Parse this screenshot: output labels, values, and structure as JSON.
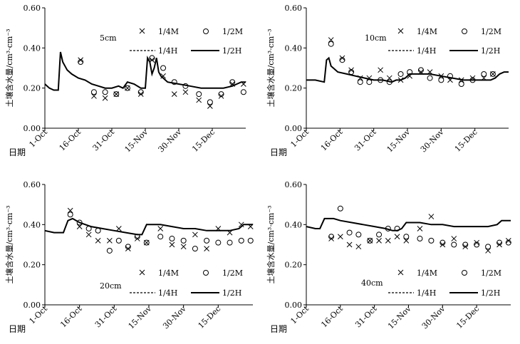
{
  "chart_data": [
    {
      "type": "line",
      "panel_label": "5cm",
      "xlabel": "日期",
      "ylabel": "土壤含水量/cm³·cm⁻³",
      "x_ticks": [
        "1-Oct",
        "16-Oct",
        "31-Oct",
        "15-Nov",
        "30-Nov",
        "15-Dec"
      ],
      "y_ticks": [
        "0.00",
        "0.20",
        "0.40",
        "0.60"
      ],
      "xlim": [
        0,
        90
      ],
      "ylim": [
        0,
        0.6
      ],
      "legend": [
        "1/4M",
        "1/2M",
        "1/4H",
        "1/2H"
      ],
      "series": [
        {
          "name": "1/4M",
          "style": "cross",
          "x": [
            16,
            22,
            27,
            32,
            37,
            43,
            48,
            53,
            58,
            63,
            69,
            74,
            79,
            84,
            89
          ],
          "y": [
            0.34,
            0.16,
            0.15,
            0.17,
            0.2,
            0.17,
            0.34,
            0.26,
            0.17,
            0.18,
            0.14,
            0.11,
            0.16,
            0.22,
            0.22
          ]
        },
        {
          "name": "1/2M",
          "style": "circle",
          "x": [
            16,
            22,
            27,
            32,
            37,
            43,
            48,
            53,
            58,
            63,
            69,
            74,
            79,
            84,
            89
          ],
          "y": [
            0.33,
            0.18,
            0.18,
            0.17,
            0.2,
            0.18,
            0.35,
            0.3,
            0.23,
            0.21,
            0.17,
            0.13,
            0.17,
            0.23,
            0.18
          ]
        },
        {
          "name": "1/4H",
          "style": "dashed",
          "x": [
            0,
            2,
            4,
            6,
            7,
            8,
            10,
            12,
            15,
            18,
            21,
            24,
            27,
            30,
            33,
            35,
            37,
            40,
            43,
            45,
            46,
            47,
            48,
            49,
            50,
            51,
            52,
            55,
            60,
            65,
            70,
            75,
            80,
            84,
            86,
            88,
            90
          ],
          "y": [
            0.22,
            0.2,
            0.19,
            0.19,
            0.38,
            0.33,
            0.29,
            0.27,
            0.25,
            0.24,
            0.22,
            0.21,
            0.2,
            0.2,
            0.21,
            0.2,
            0.23,
            0.22,
            0.2,
            0.2,
            0.35,
            0.33,
            0.27,
            0.3,
            0.35,
            0.28,
            0.26,
            0.23,
            0.22,
            0.21,
            0.2,
            0.2,
            0.2,
            0.21,
            0.22,
            0.23,
            0.23
          ]
        },
        {
          "name": "1/2H",
          "style": "solid",
          "x": [
            0,
            2,
            4,
            6,
            7,
            8,
            10,
            12,
            15,
            18,
            21,
            24,
            27,
            30,
            33,
            35,
            37,
            40,
            43,
            45,
            46,
            47,
            48,
            49,
            50,
            51,
            52,
            55,
            60,
            65,
            70,
            75,
            80,
            84,
            86,
            88,
            90
          ],
          "y": [
            0.22,
            0.2,
            0.19,
            0.19,
            0.38,
            0.33,
            0.29,
            0.27,
            0.25,
            0.24,
            0.22,
            0.21,
            0.2,
            0.2,
            0.21,
            0.2,
            0.23,
            0.22,
            0.2,
            0.2,
            0.35,
            0.33,
            0.27,
            0.3,
            0.35,
            0.28,
            0.26,
            0.23,
            0.22,
            0.21,
            0.2,
            0.2,
            0.2,
            0.21,
            0.22,
            0.23,
            0.23
          ]
        }
      ]
    },
    {
      "type": "line",
      "panel_label": "10cm",
      "xlabel": "日期",
      "ylabel": "土壤含水量/cm³·cm⁻³",
      "x_ticks": [
        "1-Oct",
        "16-Oct",
        "31-Oct",
        "15-Nov",
        "30-Nov",
        "15-Dec"
      ],
      "y_ticks": [
        "0.00",
        "0.20",
        "0.40",
        "0.60"
      ],
      "xlim": [
        0,
        90
      ],
      "ylim": [
        0,
        0.6
      ],
      "legend": [
        "1/4M",
        "1/2M",
        "1/4H",
        "1/2H"
      ],
      "series": [
        {
          "name": "1/4M",
          "style": "cross",
          "x": [
            11,
            16,
            20,
            24,
            28,
            33,
            37,
            42,
            46,
            51,
            55,
            60,
            64,
            69,
            74,
            79,
            83
          ],
          "y": [
            0.44,
            0.35,
            0.29,
            0.25,
            0.25,
            0.29,
            0.25,
            0.24,
            0.26,
            0.28,
            0.28,
            0.26,
            0.24,
            0.24,
            0.25,
            0.25,
            0.27
          ]
        },
        {
          "name": "1/2M",
          "style": "circle",
          "x": [
            11,
            16,
            20,
            24,
            28,
            33,
            37,
            42,
            46,
            51,
            55,
            60,
            64,
            69,
            74,
            79,
            83
          ],
          "y": [
            0.42,
            0.34,
            0.28,
            0.23,
            0.23,
            0.24,
            0.23,
            0.27,
            0.28,
            0.29,
            0.25,
            0.24,
            0.26,
            0.22,
            0.24,
            0.27,
            0.27
          ]
        },
        {
          "name": "1/4H",
          "style": "dashed",
          "x": [
            0,
            4,
            8,
            9,
            10,
            11,
            12,
            14,
            18,
            22,
            26,
            30,
            34,
            38,
            40,
            42,
            44,
            46,
            50,
            55,
            60,
            65,
            70,
            75,
            80,
            82,
            84,
            86,
            88,
            90
          ],
          "y": [
            0.24,
            0.24,
            0.23,
            0.34,
            0.35,
            0.31,
            0.3,
            0.28,
            0.27,
            0.26,
            0.25,
            0.24,
            0.24,
            0.23,
            0.24,
            0.24,
            0.25,
            0.27,
            0.27,
            0.27,
            0.26,
            0.25,
            0.24,
            0.24,
            0.24,
            0.24,
            0.25,
            0.27,
            0.28,
            0.28
          ]
        },
        {
          "name": "1/2H",
          "style": "solid",
          "x": [
            0,
            4,
            8,
            9,
            10,
            11,
            12,
            14,
            18,
            22,
            26,
            30,
            34,
            38,
            40,
            42,
            44,
            46,
            50,
            55,
            60,
            65,
            70,
            75,
            80,
            82,
            84,
            86,
            88,
            90
          ],
          "y": [
            0.24,
            0.24,
            0.23,
            0.34,
            0.35,
            0.31,
            0.3,
            0.28,
            0.27,
            0.26,
            0.25,
            0.24,
            0.24,
            0.23,
            0.24,
            0.24,
            0.25,
            0.27,
            0.27,
            0.27,
            0.26,
            0.25,
            0.24,
            0.24,
            0.24,
            0.24,
            0.25,
            0.27,
            0.28,
            0.28
          ]
        }
      ]
    },
    {
      "type": "line",
      "panel_label": "20cm",
      "xlabel": "日期",
      "ylabel": "土壤含水量/cm³·cm⁻³",
      "x_ticks": [
        "1-Oct",
        "16-Oct",
        "31-Oct",
        "15-Nov",
        "30-Nov",
        "15-Dec"
      ],
      "y_ticks": [
        "0.00",
        "0.20",
        "0.40",
        "0.60"
      ],
      "xlim": [
        0,
        90
      ],
      "ylim": [
        0,
        0.6
      ],
      "legend": [
        "1/4M",
        "1/2M",
        "1/4H",
        "1/2H"
      ],
      "series": [
        {
          "name": "1/4M",
          "style": "cross",
          "x": [
            11,
            15,
            19,
            23,
            28,
            32,
            36,
            40,
            44,
            50,
            55,
            60,
            65,
            70,
            75,
            80,
            85,
            89
          ],
          "y": [
            0.47,
            0.39,
            0.35,
            0.32,
            0.32,
            0.38,
            0.28,
            0.33,
            0.31,
            0.38,
            0.3,
            0.29,
            0.35,
            0.28,
            0.38,
            0.36,
            0.4,
            0.39
          ]
        },
        {
          "name": "1/2M",
          "style": "circle",
          "x": [
            11,
            15,
            19,
            23,
            28,
            32,
            36,
            40,
            44,
            50,
            55,
            60,
            65,
            70,
            75,
            80,
            85,
            89
          ],
          "y": [
            0.45,
            0.41,
            0.38,
            0.37,
            0.27,
            0.32,
            0.29,
            0.34,
            0.31,
            0.34,
            0.33,
            0.32,
            0.28,
            0.32,
            0.31,
            0.31,
            0.32,
            0.32
          ]
        },
        {
          "name": "1/4H",
          "style": "dashed",
          "x": [
            0,
            4,
            8,
            10,
            12,
            15,
            20,
            25,
            30,
            35,
            40,
            42,
            44,
            50,
            55,
            60,
            65,
            70,
            75,
            80,
            84,
            86,
            88,
            90
          ],
          "y": [
            0.37,
            0.36,
            0.36,
            0.42,
            0.43,
            0.41,
            0.39,
            0.38,
            0.37,
            0.36,
            0.35,
            0.35,
            0.4,
            0.4,
            0.39,
            0.38,
            0.38,
            0.37,
            0.37,
            0.37,
            0.38,
            0.4,
            0.4,
            0.4
          ]
        },
        {
          "name": "1/2H",
          "style": "solid",
          "x": [
            0,
            4,
            8,
            10,
            12,
            15,
            20,
            25,
            30,
            35,
            40,
            42,
            44,
            50,
            55,
            60,
            65,
            70,
            75,
            80,
            84,
            86,
            88,
            90
          ],
          "y": [
            0.37,
            0.36,
            0.36,
            0.42,
            0.43,
            0.41,
            0.39,
            0.38,
            0.37,
            0.36,
            0.35,
            0.35,
            0.4,
            0.4,
            0.39,
            0.38,
            0.38,
            0.37,
            0.37,
            0.37,
            0.38,
            0.4,
            0.4,
            0.4
          ]
        }
      ]
    },
    {
      "type": "line",
      "panel_label": "40cm",
      "xlabel": "日期",
      "ylabel": "土壤含水量/cm³·cm⁻³",
      "x_ticks": [
        "1-Oct",
        "16-Oct",
        "31-Oct",
        "15-Nov",
        "30-Nov",
        "15-Dec"
      ],
      "y_ticks": [
        "0.00",
        "0.20",
        "0.40",
        "0.60"
      ],
      "xlim": [
        0,
        90
      ],
      "ylim": [
        0,
        0.6
      ],
      "legend": [
        "1/4M",
        "1/2M",
        "1/4H",
        "1/2H"
      ],
      "series": [
        {
          "name": "1/4M",
          "style": "cross",
          "x": [
            11,
            15,
            19,
            23,
            28,
            32,
            36,
            40,
            44,
            50,
            55,
            60,
            65,
            70,
            75,
            80,
            85,
            89
          ],
          "y": [
            0.33,
            0.34,
            0.3,
            0.29,
            0.32,
            0.32,
            0.32,
            0.34,
            0.32,
            0.38,
            0.44,
            0.3,
            0.33,
            0.29,
            0.31,
            0.27,
            0.3,
            0.32
          ]
        },
        {
          "name": "1/2M",
          "style": "circle",
          "x": [
            11,
            15,
            19,
            23,
            28,
            32,
            36,
            40,
            44,
            50,
            55,
            60,
            65,
            70,
            75,
            80,
            85,
            89
          ],
          "y": [
            0.34,
            0.48,
            0.36,
            0.35,
            0.32,
            0.35,
            0.38,
            0.38,
            0.34,
            0.33,
            0.32,
            0.31,
            0.3,
            0.3,
            0.3,
            0.29,
            0.31,
            0.31
          ]
        },
        {
          "name": "1/4H",
          "style": "dashed",
          "x": [
            0,
            4,
            6,
            8,
            10,
            12,
            15,
            20,
            25,
            30,
            35,
            38,
            40,
            42,
            44,
            50,
            55,
            60,
            65,
            70,
            75,
            80,
            84,
            86,
            88,
            90
          ],
          "y": [
            0.39,
            0.38,
            0.38,
            0.43,
            0.43,
            0.43,
            0.42,
            0.41,
            0.4,
            0.39,
            0.38,
            0.37,
            0.37,
            0.38,
            0.41,
            0.41,
            0.4,
            0.4,
            0.39,
            0.39,
            0.39,
            0.39,
            0.4,
            0.42,
            0.42,
            0.42
          ]
        },
        {
          "name": "1/2H",
          "style": "solid",
          "x": [
            0,
            4,
            6,
            8,
            10,
            12,
            15,
            20,
            25,
            30,
            35,
            38,
            40,
            42,
            44,
            50,
            55,
            60,
            65,
            70,
            75,
            80,
            84,
            86,
            88,
            90
          ],
          "y": [
            0.39,
            0.38,
            0.38,
            0.43,
            0.43,
            0.43,
            0.42,
            0.41,
            0.4,
            0.39,
            0.38,
            0.37,
            0.37,
            0.38,
            0.41,
            0.41,
            0.4,
            0.4,
            0.39,
            0.39,
            0.39,
            0.39,
            0.4,
            0.42,
            0.42,
            0.42
          ]
        }
      ]
    }
  ]
}
